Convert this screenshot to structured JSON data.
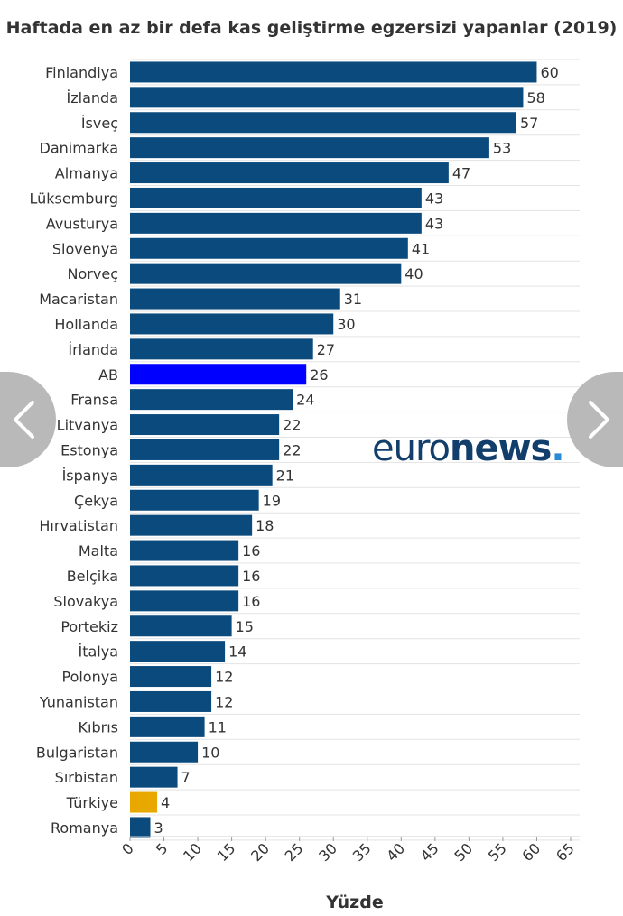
{
  "chart_data": {
    "type": "bar",
    "orientation": "horizontal",
    "title": "Haftada en az bir defa kas geliştirme egzersizi yapanlar (2019)",
    "xlabel": "Yüzde",
    "ylabel": "",
    "xlim": [
      0,
      65
    ],
    "xticks": [
      0,
      5,
      10,
      15,
      20,
      25,
      30,
      35,
      40,
      45,
      50,
      55,
      60,
      65
    ],
    "grid": true,
    "legend": "none",
    "categories": [
      "Finlandiya",
      "İzlanda",
      "İsveç",
      "Danimarka",
      "Almanya",
      "Lüksemburg",
      "Avusturya",
      "Slovenya",
      "Norveç",
      "Macaristan",
      "Hollanda",
      "İrlanda",
      "AB",
      "Fransa",
      "Litvanya",
      "Estonya",
      "İspanya",
      "Çekya",
      "Hırvatistan",
      "Malta",
      "Belçika",
      "Slovakya",
      "Portekiz",
      "İtalya",
      "Polonya",
      "Yunanistan",
      "Kıbrıs",
      "Bulgaristan",
      "Sırbistan",
      "Türkiye",
      "Romanya"
    ],
    "values": [
      60,
      58,
      57,
      53,
      47,
      43,
      43,
      41,
      40,
      31,
      30,
      27,
      26,
      24,
      22,
      22,
      21,
      19,
      18,
      16,
      16,
      16,
      15,
      14,
      12,
      12,
      11,
      10,
      7,
      4,
      3
    ],
    "colors": {
      "default": "#0b4a7d",
      "highlight": {
        "AB": "#0000ff",
        "Türkiye": "#e8a800"
      },
      "grid": "#e3e3e3",
      "text": "#333333"
    }
  },
  "watermark": {
    "part1": "euro",
    "part2": "news",
    "dot": "."
  },
  "nav": {
    "prev_icon": "chevron-left-icon",
    "next_icon": "chevron-right-icon"
  }
}
